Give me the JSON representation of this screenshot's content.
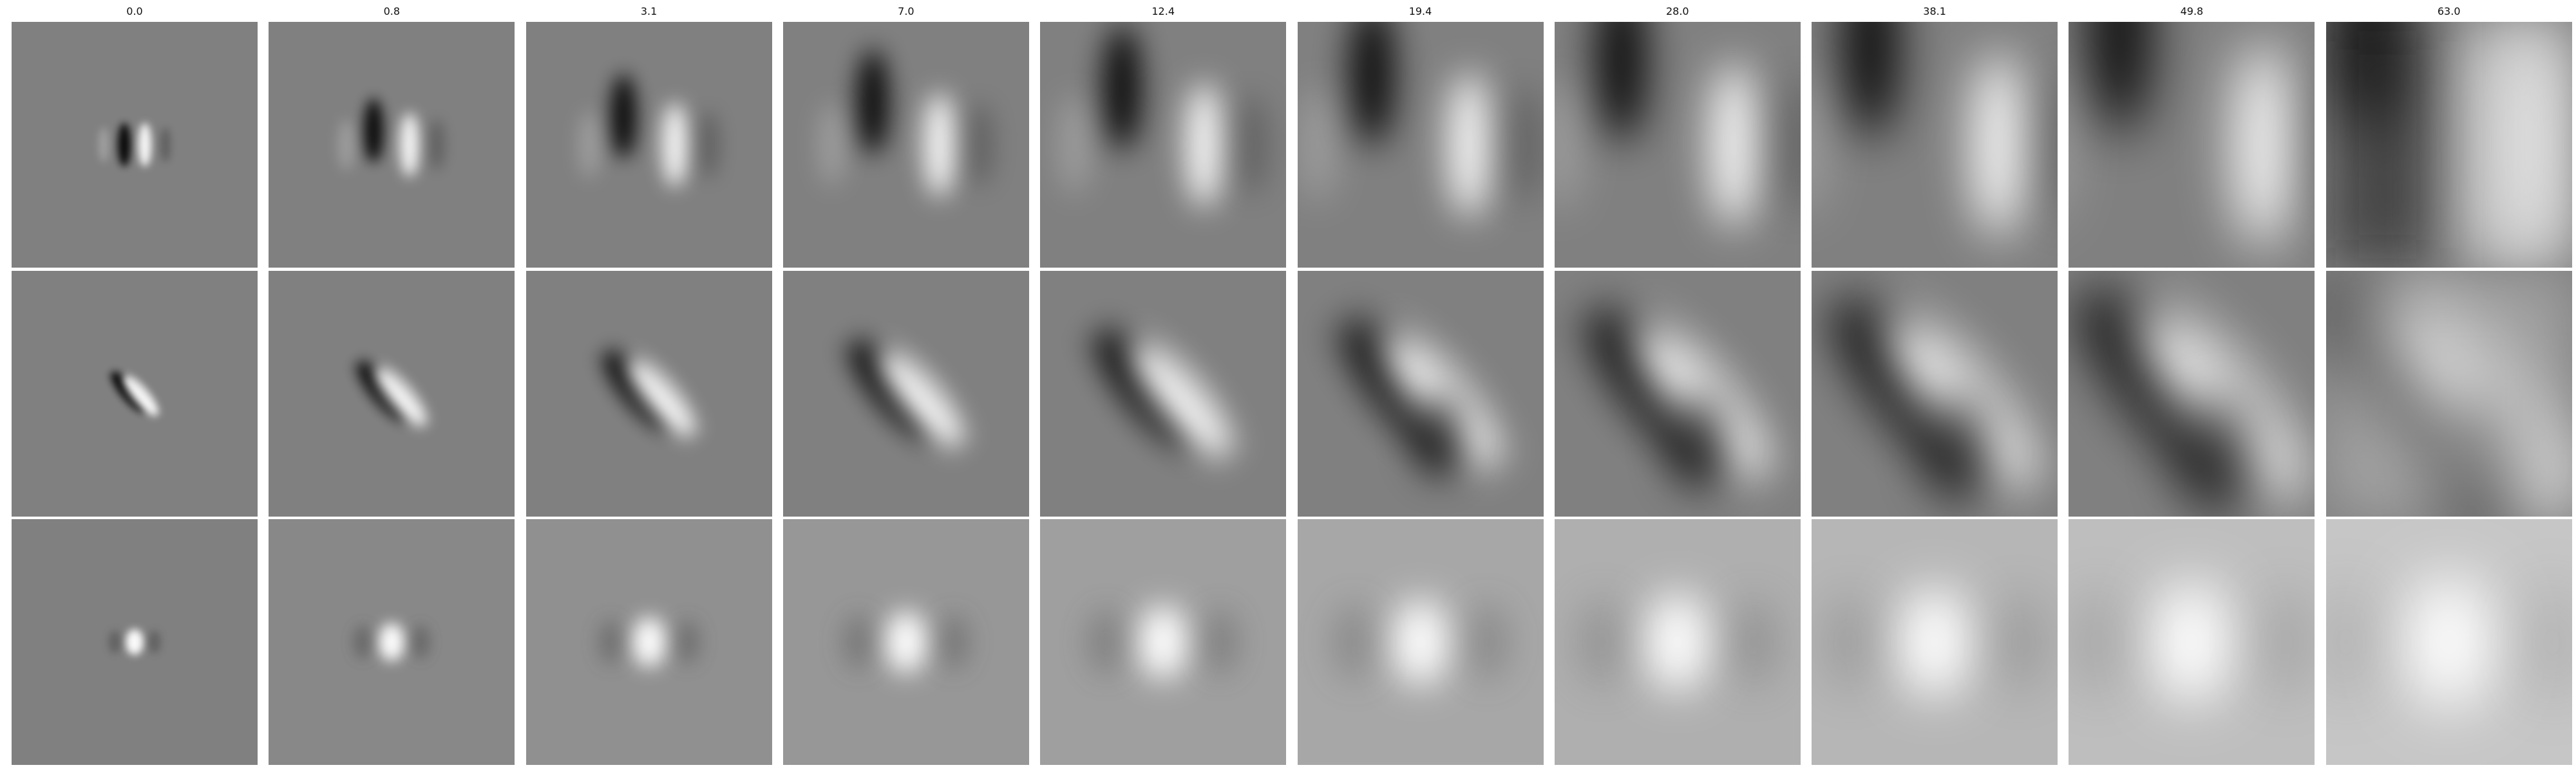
{
  "figure": {
    "column_titles": [
      "0.0",
      "0.8",
      "3.1",
      "7.0",
      "12.4",
      "19.4",
      "28.0",
      "38.1",
      "49.8",
      "63.0"
    ],
    "row_count": 3,
    "colormap": "gray",
    "background_gray": "#808080",
    "rows": [
      {
        "pattern": "vertical-dipole",
        "description_name": "row-1"
      },
      {
        "pattern": "diagonal-dipole",
        "description_name": "row-2"
      },
      {
        "pattern": "center-blob",
        "description_name": "row-3"
      }
    ]
  }
}
